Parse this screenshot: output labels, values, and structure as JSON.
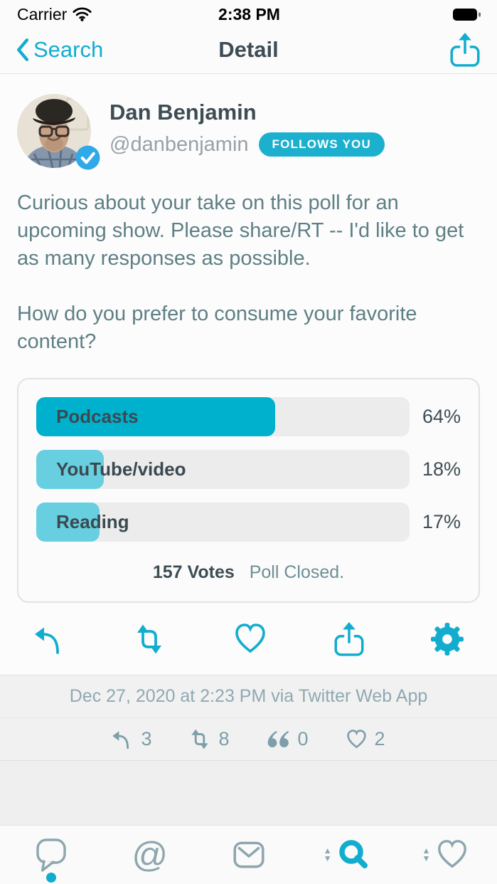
{
  "status_bar": {
    "carrier": "Carrier",
    "time": "2:38 PM"
  },
  "nav": {
    "back_label": "Search",
    "title": "Detail"
  },
  "tweet": {
    "author_name": "Dan Benjamin",
    "author_handle": "@danbenjamin",
    "follows_you_label": "FOLLOWS YOU",
    "paragraphs": {
      "p1": "Curious about your take on this poll for an upcoming show. Please share/RT -- I'd like to get as many responses as possible.",
      "p2": "How do you prefer to consume your favorite content?"
    },
    "timestamp_via": "Dec 27, 2020 at 2:23 PM via Twitter Web App",
    "stats": {
      "replies": "3",
      "retweets": "8",
      "quotes": "0",
      "likes": "2"
    }
  },
  "poll": {
    "options": [
      {
        "label": "Podcasts",
        "percent": 64,
        "percent_label": "64%",
        "winner": true
      },
      {
        "label": "YouTube/video",
        "percent": 18,
        "percent_label": "18%",
        "winner": false
      },
      {
        "label": "Reading",
        "percent": 17,
        "percent_label": "17%",
        "winner": false
      }
    ],
    "votes_label": "157 Votes",
    "closed_label": "Poll Closed."
  },
  "colors": {
    "accent": "#12ADCE",
    "poll_winner": "#00B1CE",
    "poll_other": "#67CFDF",
    "verified_blue": "#2FA9E8"
  }
}
